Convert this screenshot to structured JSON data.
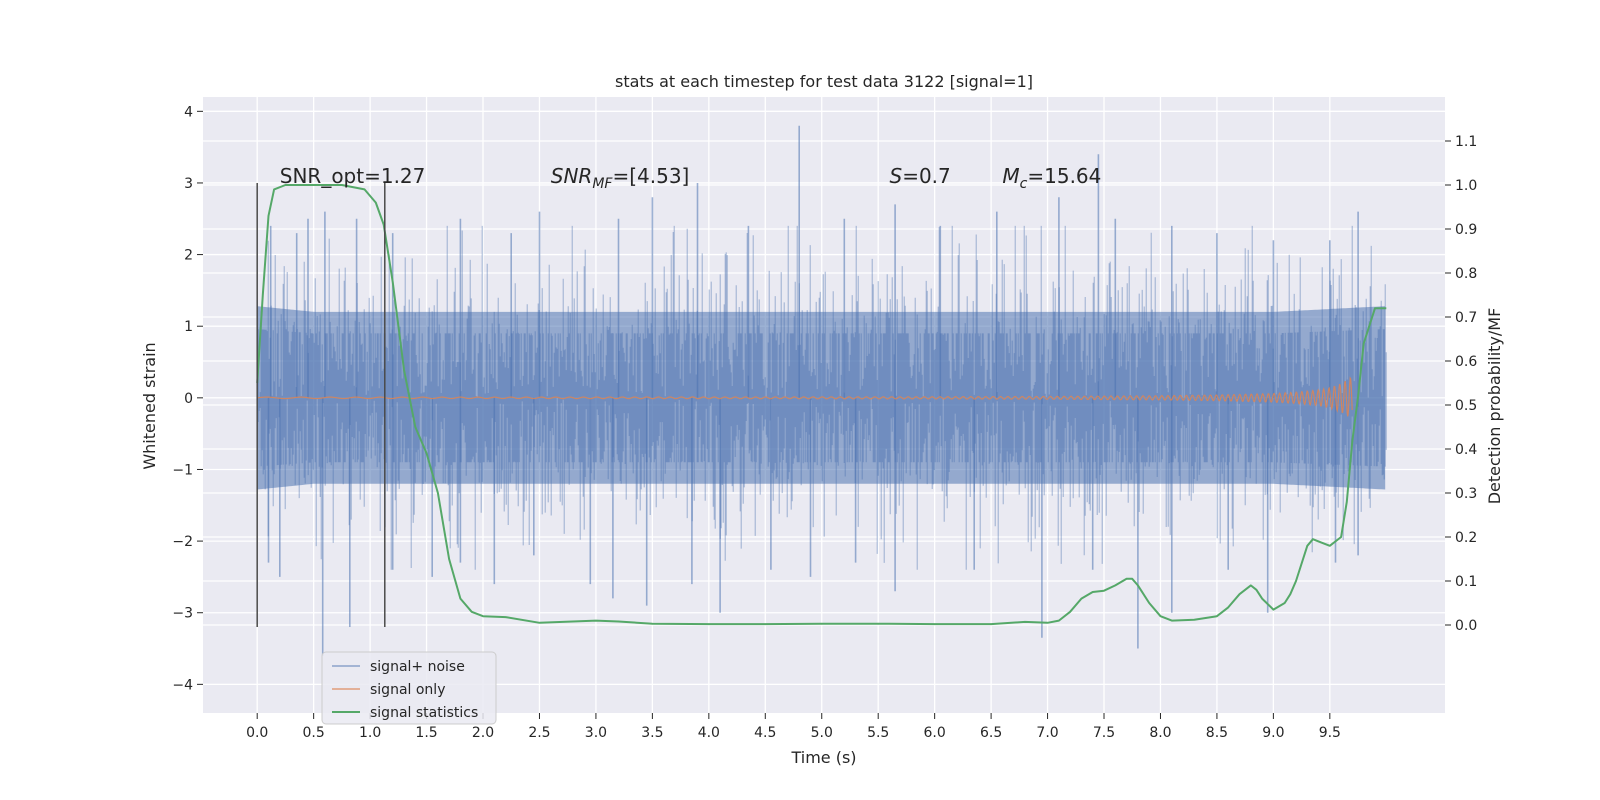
{
  "chart_data": {
    "type": "line",
    "title": "stats at each timestep for test data 3122 [signal=1]",
    "xlabel": "Time (s)",
    "ylabel": "Whitened strain",
    "y2label": "Detection probability/MF",
    "xlim": [
      -0.48,
      10.52
    ],
    "ylim": [
      -4.4,
      4.2
    ],
    "y2lim": [
      -0.2,
      1.2
    ],
    "x_ticks": [
      0.0,
      0.5,
      1.0,
      1.5,
      2.0,
      2.5,
      3.0,
      3.5,
      4.0,
      4.5,
      5.0,
      5.5,
      6.0,
      6.5,
      7.0,
      7.5,
      8.0,
      8.5,
      9.0,
      9.5
    ],
    "x_tick_labels": [
      "0.0",
      "0.5",
      "1.0",
      "1.5",
      "2.0",
      "2.5",
      "3.0",
      "3.5",
      "4.0",
      "4.5",
      "5.0",
      "5.5",
      "6.0",
      "6.5",
      "7.0",
      "7.5",
      "8.0",
      "8.5",
      "9.0",
      "9.5"
    ],
    "y_ticks": [
      -4,
      -3,
      -2,
      -1,
      0,
      1,
      2,
      3,
      4
    ],
    "y_tick_labels": [
      "−4",
      "−3",
      "−2",
      "−1",
      "0",
      "1",
      "2",
      "3",
      "4"
    ],
    "y2_ticks": [
      0.0,
      0.1,
      0.2,
      0.3,
      0.4,
      0.5,
      0.6,
      0.7,
      0.8,
      0.9,
      1.0,
      1.1
    ],
    "y2_tick_labels": [
      "0.0",
      "0.1",
      "0.2",
      "0.3",
      "0.4",
      "0.5",
      "0.6",
      "0.7",
      "0.8",
      "0.9",
      "1.0",
      "1.1"
    ],
    "grid": true,
    "legend_position": "lower-left",
    "annotations": [
      {
        "text": "SNR_opt=1.27",
        "x": 0.2,
        "y": 3.0
      },
      {
        "math": "SNR",
        "sub": "MF",
        "tail": "=[4.53]",
        "x": 2.6,
        "y": 3.0
      },
      {
        "math": "S",
        "sub": "",
        "tail": "=0.7",
        "x": 5.6,
        "y": 3.0
      },
      {
        "math": "M",
        "sub": "c",
        "tail": "=15.64",
        "x": 6.6,
        "y": 3.0
      }
    ],
    "vlines": [
      {
        "x": 0.0,
        "ymin": -3.2,
        "ymax": 3.0
      },
      {
        "x": 1.13,
        "ymin": -3.2,
        "ymax": 3.0
      }
    ],
    "series": [
      {
        "name": "signal+ noise",
        "color": "#4c72b0",
        "opacity": 0.5,
        "x_start": 0.0,
        "x_end": 10.0,
        "envelope_upper": [
          [
            0.0,
            1.6
          ],
          [
            0.5,
            1.5
          ],
          [
            1.0,
            1.5
          ],
          [
            2.0,
            1.5
          ],
          [
            3.0,
            1.5
          ],
          [
            4.0,
            1.5
          ],
          [
            5.0,
            1.5
          ],
          [
            6.0,
            1.5
          ],
          [
            7.0,
            1.5
          ],
          [
            8.0,
            1.5
          ],
          [
            9.0,
            1.5
          ],
          [
            10.0,
            1.6
          ]
        ],
        "envelope_lower": [
          [
            0.0,
            -1.6
          ],
          [
            0.5,
            -1.5
          ],
          [
            1.0,
            -1.5
          ],
          [
            2.0,
            -1.5
          ],
          [
            3.0,
            -1.5
          ],
          [
            4.0,
            -1.5
          ],
          [
            5.0,
            -1.5
          ],
          [
            6.0,
            -1.5
          ],
          [
            7.0,
            -1.5
          ],
          [
            8.0,
            -1.5
          ],
          [
            9.0,
            -1.5
          ],
          [
            10.0,
            -1.6
          ]
        ],
        "peaks": [
          [
            0.12,
            2.4
          ],
          [
            0.35,
            2.3
          ],
          [
            0.45,
            2.5
          ],
          [
            0.6,
            2.6
          ],
          [
            0.88,
            2.5
          ],
          [
            1.2,
            2.3
          ],
          [
            1.8,
            2.5
          ],
          [
            2.25,
            2.3
          ],
          [
            2.5,
            2.6
          ],
          [
            3.2,
            2.5
          ],
          [
            3.5,
            2.8
          ],
          [
            3.9,
            3.0
          ],
          [
            4.35,
            2.4
          ],
          [
            4.8,
            3.8
          ],
          [
            5.2,
            2.5
          ],
          [
            5.65,
            2.7
          ],
          [
            6.05,
            2.4
          ],
          [
            6.55,
            2.6
          ],
          [
            7.1,
            2.8
          ],
          [
            7.45,
            3.4
          ],
          [
            7.6,
            2.5
          ],
          [
            8.1,
            2.4
          ],
          [
            8.5,
            2.3
          ],
          [
            9.0,
            2.2
          ],
          [
            9.5,
            2.2
          ],
          [
            9.75,
            2.6
          ]
        ],
        "troughs": [
          [
            0.1,
            -2.3
          ],
          [
            0.2,
            -2.5
          ],
          [
            0.58,
            -3.6
          ],
          [
            0.82,
            -3.2
          ],
          [
            1.2,
            -2.4
          ],
          [
            1.55,
            -2.5
          ],
          [
            1.8,
            -2.3
          ],
          [
            2.1,
            -2.6
          ],
          [
            2.45,
            -2.2
          ],
          [
            2.95,
            -2.6
          ],
          [
            3.15,
            -2.8
          ],
          [
            3.45,
            -2.9
          ],
          [
            3.85,
            -2.6
          ],
          [
            4.1,
            -3.0
          ],
          [
            4.55,
            -2.4
          ],
          [
            4.9,
            -2.5
          ],
          [
            5.3,
            -2.3
          ],
          [
            5.65,
            -2.7
          ],
          [
            6.35,
            -2.4
          ],
          [
            6.95,
            -3.35
          ],
          [
            7.4,
            -2.4
          ],
          [
            7.8,
            -3.5
          ],
          [
            8.1,
            -3.0
          ],
          [
            8.6,
            -2.4
          ],
          [
            8.95,
            -3.0
          ],
          [
            9.55,
            -2.3
          ],
          [
            9.75,
            -2.2
          ]
        ]
      },
      {
        "name": "signal only",
        "color": "#dd8452",
        "x": [
          0.0,
          2.0,
          4.0,
          6.0,
          7.0,
          8.0,
          8.5,
          9.0,
          9.2,
          9.4,
          9.5,
          9.6,
          9.65,
          9.7
        ],
        "amplitude": [
          0.01,
          0.01,
          0.012,
          0.015,
          0.02,
          0.03,
          0.04,
          0.06,
          0.08,
          0.11,
          0.14,
          0.2,
          0.25,
          0.3
        ]
      },
      {
        "name": "signal statistics",
        "color": "#55a868",
        "axis": "right",
        "x": [
          0.0,
          0.05,
          0.1,
          0.15,
          0.25,
          0.5,
          0.75,
          0.95,
          1.05,
          1.12,
          1.2,
          1.3,
          1.4,
          1.5,
          1.6,
          1.7,
          1.8,
          1.9,
          2.0,
          2.2,
          2.5,
          3.0,
          3.2,
          3.5,
          4.0,
          4.5,
          5.0,
          5.5,
          6.0,
          6.5,
          6.8,
          7.0,
          7.1,
          7.2,
          7.3,
          7.4,
          7.5,
          7.6,
          7.7,
          7.75,
          7.8,
          7.9,
          8.0,
          8.1,
          8.3,
          8.5,
          8.6,
          8.7,
          8.8,
          8.85,
          8.9,
          9.0,
          9.1,
          9.15,
          9.2,
          9.3,
          9.35,
          9.4,
          9.5,
          9.6,
          9.65,
          9.7,
          9.75,
          9.8,
          9.9,
          10.0
        ],
        "y": [
          0.55,
          0.75,
          0.93,
          0.99,
          1.0,
          1.0,
          1.0,
          0.99,
          0.96,
          0.91,
          0.78,
          0.58,
          0.45,
          0.39,
          0.3,
          0.15,
          0.06,
          0.03,
          0.02,
          0.018,
          0.005,
          0.01,
          0.008,
          0.003,
          0.002,
          0.002,
          0.003,
          0.003,
          0.002,
          0.002,
          0.007,
          0.005,
          0.01,
          0.03,
          0.06,
          0.075,
          0.078,
          0.09,
          0.105,
          0.105,
          0.09,
          0.05,
          0.02,
          0.01,
          0.012,
          0.02,
          0.04,
          0.07,
          0.09,
          0.08,
          0.06,
          0.035,
          0.05,
          0.07,
          0.1,
          0.18,
          0.195,
          0.19,
          0.18,
          0.2,
          0.28,
          0.42,
          0.52,
          0.64,
          0.72,
          0.72
        ]
      }
    ]
  }
}
